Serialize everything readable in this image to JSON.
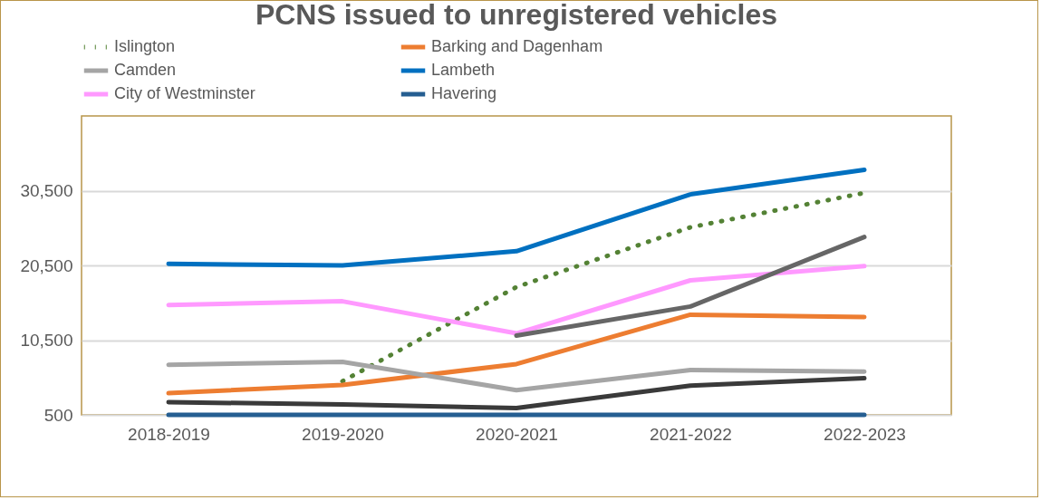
{
  "chart_data": {
    "type": "line",
    "title": "PCNS issued to unregistered vehicles",
    "categories": [
      "2018-2019",
      "2019-2020",
      "2020-2021",
      "2021-2022",
      "2022-2023"
    ],
    "ylim": [
      500,
      40500
    ],
    "yticks": [
      500,
      {
        "value": 10500,
        "label": "10,500"
      },
      {
        "value": 20500,
        "label": "20,500"
      },
      {
        "value": 30500,
        "label": "30,500"
      }
    ],
    "grid": "y",
    "legend": "top",
    "marker": "none",
    "series": [
      {
        "name": "Islington",
        "color": "#548235",
        "line_style": "dotted",
        "values": [
          null,
          5000,
          17600,
          25600,
          30200
        ]
      },
      {
        "name": "Barking and Dagenham",
        "color": "#ed7d31",
        "line_style": "solid",
        "values": [
          3400,
          4500,
          7300,
          13900,
          13600
        ]
      },
      {
        "name": "Camden",
        "color": "#a5a5a5",
        "line_style": "solid",
        "values": [
          7200,
          7600,
          3800,
          6500,
          6300
        ]
      },
      {
        "name": "Lambeth",
        "color": "#0070c0",
        "line_style": "solid",
        "values": [
          20700,
          20500,
          22400,
          30000,
          33300
        ]
      },
      {
        "name": "City of Westminster",
        "color": "#ff99ff",
        "line_style": "solid",
        "values": [
          15200,
          15700,
          11400,
          18500,
          20400
        ]
      },
      {
        "name": "Havering",
        "color": "#255e91",
        "line_style": "solid",
        "values": [
          500,
          500,
          500,
          500,
          500
        ]
      },
      {
        "color": "#666666",
        "line_style": "solid",
        "values": [
          null,
          null,
          11100,
          15000,
          24300
        ]
      },
      {
        "color": "#3a3a3a",
        "line_style": "solid",
        "values": [
          2200,
          1900,
          1400,
          4400,
          5400
        ]
      }
    ]
  }
}
